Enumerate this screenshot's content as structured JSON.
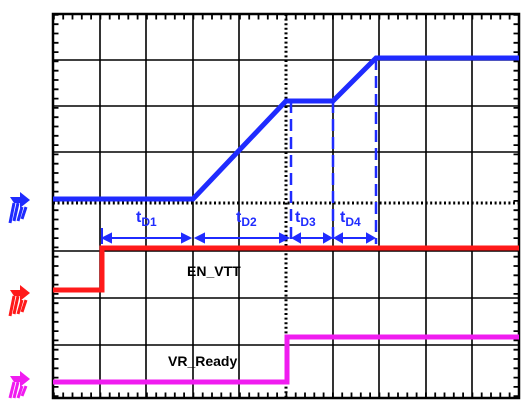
{
  "labels": {
    "en_vtt": "EN_VTT",
    "vr_ready": "VR_Ready"
  },
  "timing_labels": [
    {
      "base": "t",
      "sub": "D1"
    },
    {
      "base": "t",
      "sub": "D2"
    },
    {
      "base": "t",
      "sub": "D3"
    },
    {
      "base": "t",
      "sub": "D4"
    }
  ],
  "colors": {
    "trace_vddq": "#1f2bff",
    "trace_en_vtt": "#ff1a1a",
    "trace_vr_ready": "#f01cf0",
    "grid": "#000000",
    "background": "#ffffff"
  },
  "icons": {
    "ground_marker": "ground-arrow-icon"
  }
}
